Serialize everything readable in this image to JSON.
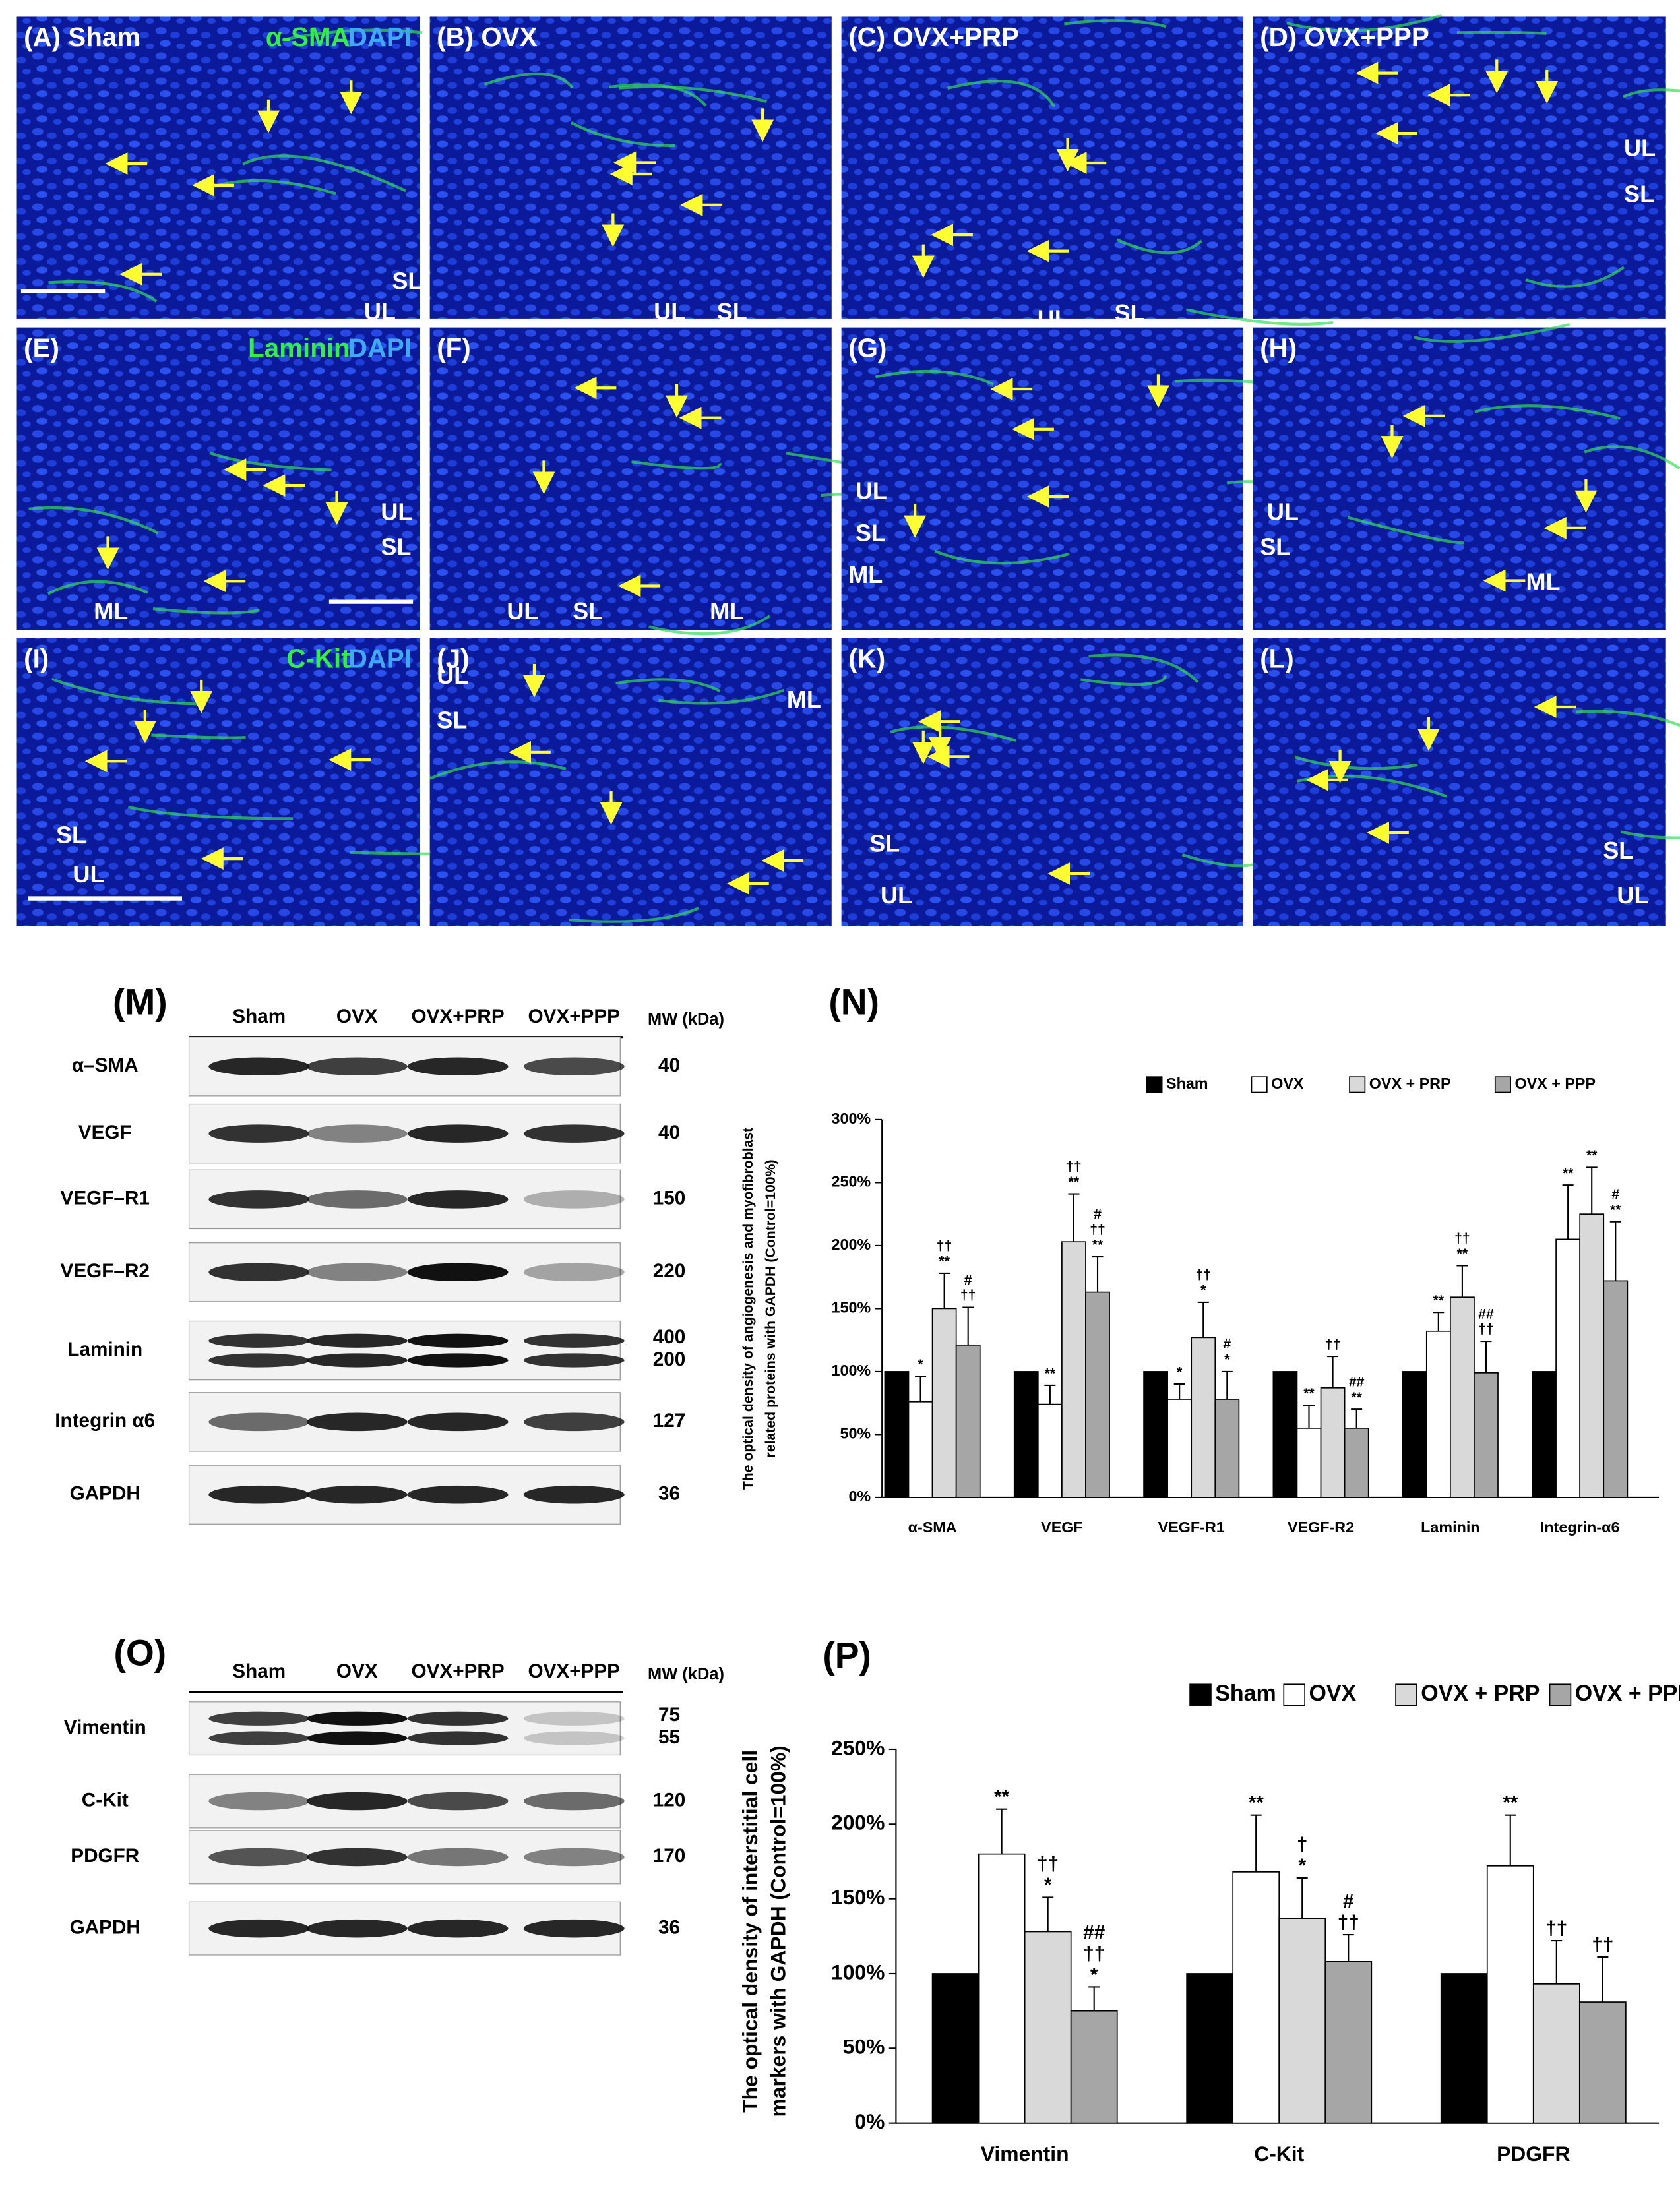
{
  "micrographs": [
    {
      "label": "(A) Sham",
      "stain": [
        "α-SMA",
        "DAPI"
      ],
      "regions": [
        "SL",
        "UL"
      ]
    },
    {
      "label": "(B) OVX",
      "regions": [
        "UL",
        "SL"
      ]
    },
    {
      "label": "(C) OVX+PRP",
      "regions": [
        "UL",
        "SL"
      ]
    },
    {
      "label": "(D) OVX+PPP",
      "regions": [
        "UL",
        "SL"
      ]
    },
    {
      "label": "(E)",
      "stain": [
        "Laminin",
        "DAPI"
      ],
      "regions": [
        "UL",
        "SL",
        "ML"
      ]
    },
    {
      "label": "(F)",
      "regions": [
        "UL",
        "SL",
        "ML"
      ]
    },
    {
      "label": "(G)",
      "regions": [
        "UL",
        "SL",
        "ML"
      ]
    },
    {
      "label": "(H)",
      "regions": [
        "UL",
        "SL",
        "ML"
      ]
    },
    {
      "label": "(I)",
      "stain": [
        "C-Kit",
        "DAPI"
      ],
      "regions": [
        "SL",
        "UL"
      ]
    },
    {
      "label": "(J)",
      "regions": [
        "UL",
        "SL",
        "ML"
      ]
    },
    {
      "label": "(K)",
      "regions": [
        "SL",
        "UL"
      ]
    },
    {
      "label": "(L)",
      "regions": [
        "SL",
        "UL"
      ]
    }
  ],
  "blots": [
    {
      "panel": "(M)",
      "columns": [
        "Sham",
        "OVX",
        "OVX+PRP",
        "OVX+PPP"
      ],
      "mw_header": "MW (kDa)",
      "rows": [
        {
          "name": "α–SMA",
          "mw": [
            "40"
          ]
        },
        {
          "name": "VEGF",
          "mw": [
            "40"
          ]
        },
        {
          "name": "VEGF–R1",
          "mw": [
            "150"
          ]
        },
        {
          "name": "VEGF–R2",
          "mw": [
            "220"
          ]
        },
        {
          "name": "Laminin",
          "mw": [
            "400",
            "200"
          ]
        },
        {
          "name": "Integrin α6",
          "mw": [
            "127"
          ]
        },
        {
          "name": "GAPDH",
          "mw": [
            "36"
          ]
        }
      ]
    },
    {
      "panel": "(O)",
      "columns": [
        "Sham",
        "OVX",
        "OVX+PRP",
        "OVX+PPP"
      ],
      "mw_header": "MW (kDa)",
      "rows": [
        {
          "name": "Vimentin",
          "mw": [
            "75",
            "55"
          ]
        },
        {
          "name": "C-Kit",
          "mw": [
            "120"
          ]
        },
        {
          "name": "PDGFR",
          "mw": [
            "170"
          ]
        },
        {
          "name": "GAPDH",
          "mw": [
            "36"
          ]
        }
      ]
    }
  ],
  "chart_data": [
    {
      "type": "bar",
      "panel": "(N)",
      "y_label": [
        "The optical density of angiogenesis and myofibroblast",
        "related proteins with GAPDH (Control=100%)"
      ],
      "categories": [
        "α-SMA",
        "VEGF",
        "VEGF-R1",
        "VEGF-R2",
        "Laminin",
        "Integrin-α6"
      ],
      "ylim": [
        0,
        300
      ],
      "yticks": [
        {
          "value": 0,
          "label": "0%"
        },
        {
          "value": 50,
          "label": "50%"
        },
        {
          "value": 100,
          "label": "100%"
        },
        {
          "value": 150,
          "label": "150%"
        },
        {
          "value": 200,
          "label": "200%"
        },
        {
          "value": 250,
          "label": "250%"
        },
        {
          "value": 300,
          "label": "300%"
        }
      ],
      "series": [
        {
          "name": "Sham",
          "color": "#000000",
          "values": [
            100,
            100,
            100,
            100,
            100,
            100
          ]
        },
        {
          "name": "OVX",
          "color": "#ffffff",
          "values": [
            76,
            74,
            78,
            55,
            132,
            205
          ],
          "errors": [
            20,
            15,
            12,
            18,
            15,
            43
          ],
          "annotations": [
            [
              "*"
            ],
            [
              "**"
            ],
            [
              "*"
            ],
            [
              "**"
            ],
            [
              "**"
            ],
            [
              "**"
            ]
          ]
        },
        {
          "name": "OVX + PRP",
          "color": "#d9d9d9",
          "values": [
            150,
            203,
            127,
            87,
            159,
            225
          ],
          "errors": [
            28,
            38,
            28,
            25,
            25,
            37
          ],
          "annotations": [
            [
              "††",
              "**"
            ],
            [
              "††",
              "**"
            ],
            [
              "††",
              "*"
            ],
            [
              "††"
            ],
            [
              "††",
              "**"
            ],
            [
              "**"
            ]
          ]
        },
        {
          "name": "OVX + PPP",
          "color": "#a6a6a6",
          "values": [
            121,
            163,
            78,
            55,
            99,
            172
          ],
          "errors": [
            30,
            28,
            22,
            15,
            25,
            47
          ],
          "annotations": [
            [
              "#",
              "††"
            ],
            [
              "#",
              "††",
              "**"
            ],
            [
              "#",
              "*"
            ],
            [
              "##",
              "**"
            ],
            [
              "##",
              "††"
            ],
            [
              "#",
              "**"
            ]
          ]
        }
      ]
    },
    {
      "type": "bar",
      "panel": "(P)",
      "y_label": [
        "The optical density of interstitial cell",
        "markers  with GAPDH (Control=100%)"
      ],
      "categories": [
        "Vimentin",
        "C-Kit",
        "PDGFR"
      ],
      "ylim": [
        0,
        250
      ],
      "yticks": [
        {
          "value": 0,
          "label": "0%"
        },
        {
          "value": 50,
          "label": "50%"
        },
        {
          "value": 100,
          "label": "100%"
        },
        {
          "value": 150,
          "label": "150%"
        },
        {
          "value": 200,
          "label": "200%"
        },
        {
          "value": 250,
          "label": "250%"
        }
      ],
      "series": [
        {
          "name": "Sham",
          "color": "#000000",
          "values": [
            100,
            100,
            100
          ]
        },
        {
          "name": "OVX",
          "color": "#ffffff",
          "values": [
            180,
            168,
            172
          ],
          "errors": [
            30,
            38,
            34
          ],
          "annotations": [
            [
              "**"
            ],
            [
              "**"
            ],
            [
              "**"
            ]
          ]
        },
        {
          "name": "OVX + PRP",
          "color": "#d9d9d9",
          "values": [
            128,
            137,
            93
          ],
          "errors": [
            23,
            27,
            29
          ],
          "annotations": [
            [
              "††",
              "*"
            ],
            [
              "†",
              "*"
            ],
            [
              "††"
            ]
          ]
        },
        {
          "name": "OVX + PPP",
          "color": "#a6a6a6",
          "values": [
            75,
            108,
            81
          ],
          "errors": [
            16,
            18,
            30
          ],
          "annotations": [
            [
              "##",
              "††",
              "*"
            ],
            [
              "#",
              "††"
            ],
            [
              "††"
            ]
          ]
        }
      ]
    }
  ]
}
